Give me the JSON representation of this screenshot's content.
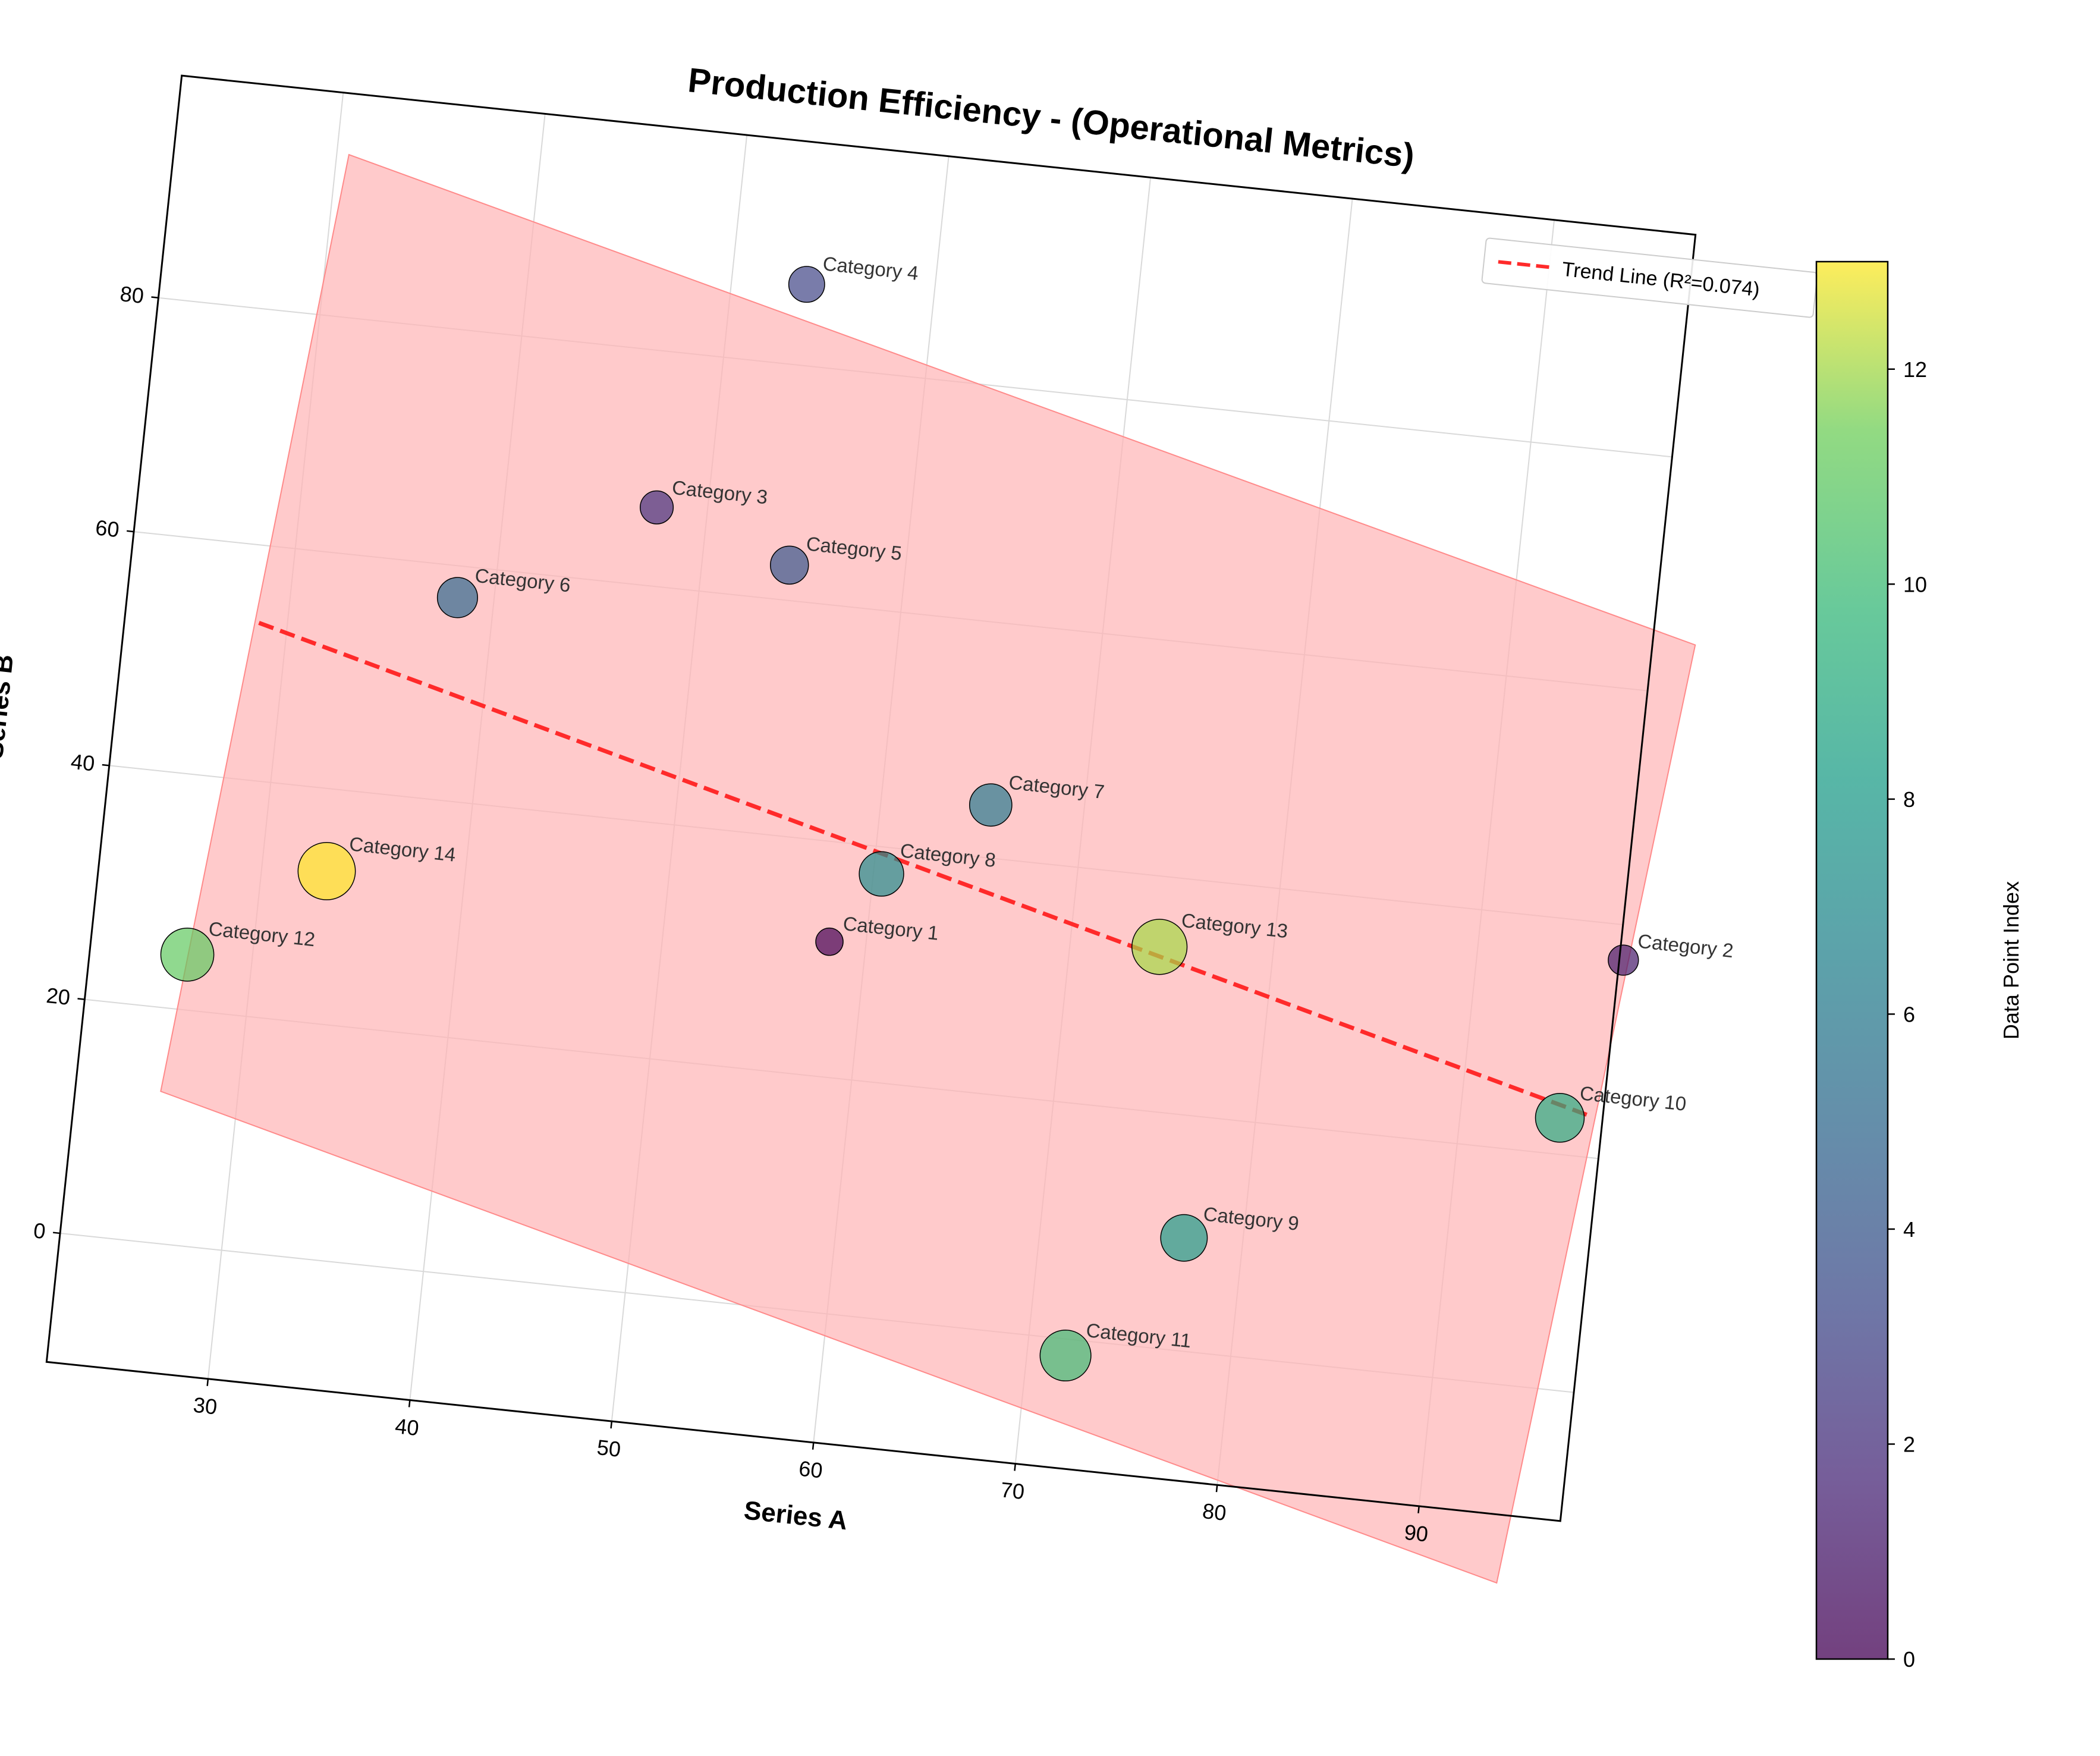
{
  "chart_data": {
    "type": "scatter",
    "title": "Production Efficiency - (Operational Metrics)",
    "xlabel": "Series A",
    "ylabel": "Series B",
    "xlim": [
      22,
      97
    ],
    "ylim": [
      -11,
      99
    ],
    "xticks": [
      30,
      40,
      50,
      60,
      70,
      80,
      90
    ],
    "yticks": [
      0,
      20,
      40,
      60,
      80
    ],
    "grid": true,
    "rotation_degrees": 6,
    "points": [
      {
        "label": "Category 1",
        "x": 58.2,
        "y": 31.5,
        "color_index": 0,
        "size": 1
      },
      {
        "label": "Category 2",
        "x": 97.2,
        "y": 37.0,
        "color_index": 1,
        "size": 1.2
      },
      {
        "label": "Category 3",
        "x": 47.5,
        "y": 66.7,
        "color_index": 2,
        "size": 1.4
      },
      {
        "label": "Category 4",
        "x": 53.7,
        "y": 86.9,
        "color_index": 3,
        "size": 1.6
      },
      {
        "label": "Category 5",
        "x": 54.3,
        "y": 63.0,
        "color_index": 4,
        "size": 1.75
      },
      {
        "label": "Category 6",
        "x": 38.2,
        "y": 57.3,
        "color_index": 5,
        "size": 1.9
      },
      {
        "label": "Category 7",
        "x": 65.4,
        "y": 44.5,
        "color_index": 6,
        "size": 2.05
      },
      {
        "label": "Category 8",
        "x": 60.4,
        "y": 37.7,
        "color_index": 7,
        "size": 2.2
      },
      {
        "label": "Category 9",
        "x": 77.1,
        "y": 9.6,
        "color_index": 8,
        "size": 2.35
      },
      {
        "label": "Category 10",
        "x": 94.9,
        "y": 23.1,
        "color_index": 9,
        "size": 2.5
      },
      {
        "label": "Category 11",
        "x": 71.9,
        "y": -1.4,
        "color_index": 10,
        "size": 2.65
      },
      {
        "label": "Category 12",
        "x": 26.8,
        "y": 24.7,
        "color_index": 11,
        "size": 2.8
      },
      {
        "label": "Category 13",
        "x": 74.4,
        "y": 34.0,
        "color_index": 12,
        "size": 2.95
      },
      {
        "label": "Category 14",
        "x": 33.2,
        "y": 33.0,
        "color_index": 13,
        "size": 3.1
      }
    ],
    "trend_line": {
      "label": "Trend Line (R²=0.074)",
      "color": "#ff2a2a",
      "x": [
        28.6,
        96.2
      ],
      "y": [
        53.4,
        23.6
      ]
    },
    "confidence_band": {
      "color": "#ffb3b5",
      "polygon": [
        [
          30.6,
          93.8
        ],
        [
          99.1,
          64.3
        ],
        [
          94.2,
          -16.8
        ],
        [
          26.2,
          12.9
        ]
      ]
    },
    "legend": {
      "location": "upper right",
      "entries": [
        "Trend Line (R²=0.074)"
      ]
    },
    "colorbar": {
      "label": "Data Point Index",
      "range": [
        0,
        13
      ],
      "ticks": [
        0,
        2,
        4,
        6,
        8,
        10,
        12
      ],
      "colormap": "viridis"
    }
  }
}
